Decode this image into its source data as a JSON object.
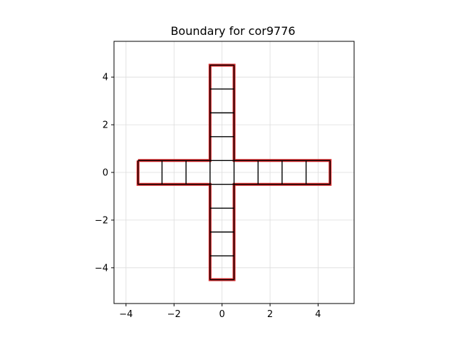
{
  "chart_data": {
    "type": "line",
    "title": "Boundary for cor9776",
    "xlabel": "",
    "ylabel": "",
    "xlim": [
      -4.5,
      5.5
    ],
    "ylim": [
      -5.5,
      5.5
    ],
    "xticks": [
      -4,
      -2,
      0,
      2,
      4
    ],
    "yticks": [
      -4,
      -2,
      0,
      2,
      4
    ],
    "xtick_labels": [
      "−4",
      "−2",
      "0",
      "2",
      "4"
    ],
    "ytick_labels": [
      "−4",
      "−2",
      "0",
      "2",
      "4"
    ],
    "grid": true,
    "aspect": "equal",
    "boundary": {
      "color": "#d62728",
      "points": [
        [
          -3.5,
          0.5
        ],
        [
          -0.5,
          0.5
        ],
        [
          -0.5,
          4.5
        ],
        [
          0.5,
          4.5
        ],
        [
          0.5,
          0.5
        ],
        [
          4.5,
          0.5
        ],
        [
          4.5,
          -0.5
        ],
        [
          0.5,
          -0.5
        ],
        [
          0.5,
          -4.5
        ],
        [
          -0.5,
          -4.5
        ],
        [
          -0.5,
          -0.5
        ],
        [
          -3.5,
          -0.5
        ],
        [
          -3.5,
          0.5
        ]
      ]
    },
    "cells": {
      "color": "#000000",
      "segments": [
        [
          [
            -3.5,
            -0.5
          ],
          [
            -3.5,
            0.5
          ]
        ],
        [
          [
            -2.5,
            -0.5
          ],
          [
            -2.5,
            0.5
          ]
        ],
        [
          [
            -1.5,
            -0.5
          ],
          [
            -1.5,
            0.5
          ]
        ],
        [
          [
            -0.5,
            -0.5
          ],
          [
            -0.5,
            0.5
          ]
        ],
        [
          [
            0.5,
            -0.5
          ],
          [
            0.5,
            0.5
          ]
        ],
        [
          [
            1.5,
            -0.5
          ],
          [
            1.5,
            0.5
          ]
        ],
        [
          [
            2.5,
            -0.5
          ],
          [
            2.5,
            0.5
          ]
        ],
        [
          [
            3.5,
            -0.5
          ],
          [
            3.5,
            0.5
          ]
        ],
        [
          [
            4.5,
            -0.5
          ],
          [
            4.5,
            0.5
          ]
        ],
        [
          [
            -3.5,
            0.5
          ],
          [
            -0.5,
            0.5
          ]
        ],
        [
          [
            0.5,
            0.5
          ],
          [
            4.5,
            0.5
          ]
        ],
        [
          [
            -3.5,
            -0.5
          ],
          [
            -0.5,
            -0.5
          ]
        ],
        [
          [
            0.5,
            -0.5
          ],
          [
            4.5,
            -0.5
          ]
        ],
        [
          [
            -0.5,
            0.5
          ],
          [
            0.5,
            0.5
          ]
        ],
        [
          [
            -0.5,
            -0.5
          ],
          [
            0.5,
            -0.5
          ]
        ],
        [
          [
            -0.5,
            0.5
          ],
          [
            -0.5,
            4.5
          ]
        ],
        [
          [
            0.5,
            0.5
          ],
          [
            0.5,
            4.5
          ]
        ],
        [
          [
            -0.5,
            1.5
          ],
          [
            0.5,
            1.5
          ]
        ],
        [
          [
            -0.5,
            2.5
          ],
          [
            0.5,
            2.5
          ]
        ],
        [
          [
            -0.5,
            3.5
          ],
          [
            0.5,
            3.5
          ]
        ],
        [
          [
            -0.5,
            4.5
          ],
          [
            0.5,
            4.5
          ]
        ],
        [
          [
            -0.5,
            -0.5
          ],
          [
            -0.5,
            -4.5
          ]
        ],
        [
          [
            0.5,
            -0.5
          ],
          [
            0.5,
            -4.5
          ]
        ],
        [
          [
            -0.5,
            -1.5
          ],
          [
            0.5,
            -1.5
          ]
        ],
        [
          [
            -0.5,
            -2.5
          ],
          [
            0.5,
            -2.5
          ]
        ],
        [
          [
            -0.5,
            -3.5
          ],
          [
            0.5,
            -3.5
          ]
        ],
        [
          [
            -0.5,
            -4.5
          ],
          [
            0.5,
            -4.5
          ]
        ]
      ]
    }
  }
}
